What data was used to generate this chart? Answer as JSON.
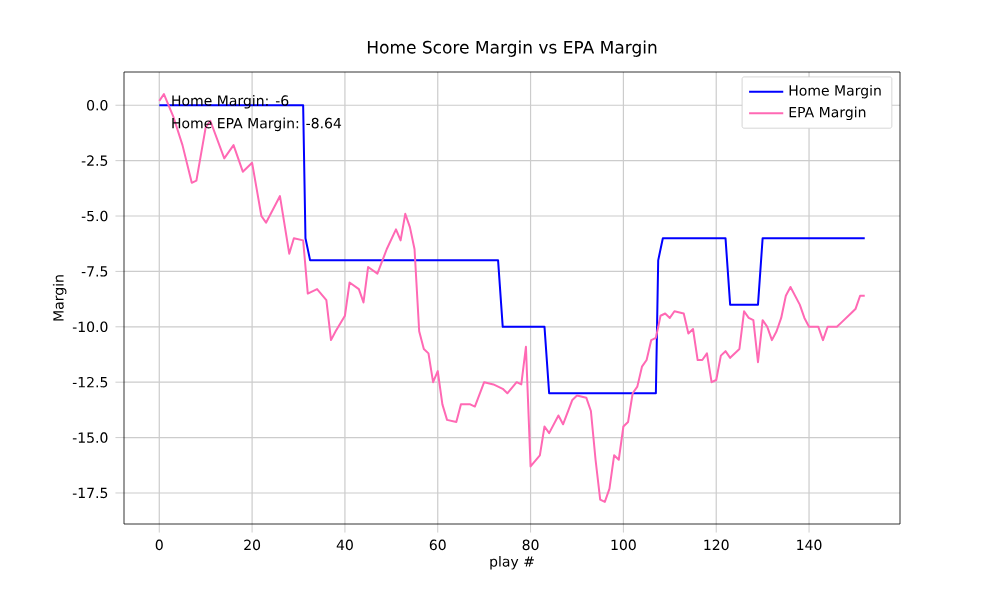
{
  "chart_data": {
    "type": "line",
    "title": "Home Score Margin vs EPA Margin",
    "xlabel": "play #",
    "ylabel": "Margin",
    "annotations": [
      "Home Margin: -6",
      "Home EPA Margin: -8.64"
    ],
    "series": [
      {
        "name": "Home Margin",
        "color": "#0000ff",
        "x": [
          0,
          31,
          31.5,
          32.5,
          73,
          74,
          83,
          84,
          107,
          107.5,
          108.5,
          122,
          123,
          129,
          130,
          152
        ],
        "values": [
          0,
          0,
          -6,
          -7,
          -7,
          -10,
          -10,
          -13,
          -13,
          -7,
          -6,
          -6,
          -9,
          -9,
          -6,
          -6
        ]
      },
      {
        "name": "EPA Margin",
        "color": "#ff69b4",
        "x": [
          0,
          1,
          3,
          5,
          7,
          8,
          10,
          11,
          14,
          16,
          18,
          20,
          21,
          22,
          23,
          25,
          26,
          28,
          29,
          31,
          32,
          34,
          36,
          37,
          38,
          40,
          41,
          43,
          44,
          45,
          47,
          49,
          51,
          52,
          53,
          54,
          55,
          56,
          57,
          58,
          59,
          60,
          61,
          62,
          64,
          65,
          67,
          68,
          70,
          72,
          74,
          75,
          77,
          78,
          79,
          80,
          82,
          83,
          84,
          86,
          87,
          89,
          90,
          92,
          93,
          94,
          95,
          96,
          97,
          98,
          99,
          100,
          101,
          102,
          103,
          104,
          105,
          106,
          107,
          108,
          109,
          110,
          111,
          113,
          114,
          115,
          116,
          117,
          118,
          119,
          120,
          121,
          122,
          123,
          125,
          126,
          127,
          128,
          129,
          130,
          131,
          132,
          133,
          134,
          135,
          136,
          137,
          138,
          139,
          140,
          142,
          143,
          144,
          146,
          147,
          149,
          150,
          151,
          152
        ],
        "values": [
          0.2,
          0.5,
          -0.5,
          -1.8,
          -3.5,
          -3.4,
          -1.0,
          -0.7,
          -2.4,
          -1.8,
          -3.0,
          -2.6,
          -3.8,
          -5.0,
          -5.3,
          -4.5,
          -4.1,
          -6.7,
          -6.0,
          -6.1,
          -8.5,
          -8.3,
          -8.8,
          -10.6,
          -10.2,
          -9.5,
          -8.0,
          -8.3,
          -8.9,
          -7.3,
          -7.6,
          -6.5,
          -5.6,
          -6.1,
          -4.9,
          -5.5,
          -6.5,
          -10.2,
          -11.0,
          -11.2,
          -12.5,
          -12.0,
          -13.5,
          -14.2,
          -14.3,
          -13.5,
          -13.5,
          -13.6,
          -12.5,
          -12.6,
          -12.8,
          -13.0,
          -12.5,
          -12.6,
          -10.9,
          -16.3,
          -15.8,
          -14.5,
          -14.8,
          -14.0,
          -14.4,
          -13.3,
          -13.1,
          -13.2,
          -13.8,
          -16.0,
          -17.8,
          -17.9,
          -17.3,
          -15.8,
          -16.0,
          -14.5,
          -14.3,
          -13.0,
          -12.7,
          -11.8,
          -11.5,
          -10.6,
          -10.5,
          -9.5,
          -9.4,
          -9.6,
          -9.3,
          -9.4,
          -10.3,
          -10.1,
          -11.5,
          -11.5,
          -11.2,
          -12.5,
          -12.4,
          -11.3,
          -11.1,
          -11.4,
          -11.0,
          -9.3,
          -9.6,
          -9.7,
          -11.6,
          -9.7,
          -10.0,
          -10.6,
          -10.2,
          -9.6,
          -8.6,
          -8.2,
          -8.6,
          -9.0,
          -9.6,
          -10.0,
          -10.0,
          -10.6,
          -10.0,
          -10.0,
          -9.8,
          -9.4,
          -9.2,
          -8.6,
          -8.6
        ]
      }
    ],
    "xlim": [
      -7.6,
      159.6
    ],
    "ylim": [
      -18.9,
      1.5
    ],
    "xticks": [
      0,
      20,
      40,
      60,
      80,
      100,
      120,
      140
    ],
    "yticks": [
      {
        "value": 0,
        "label": "0.0"
      },
      -2.5,
      {
        "value": -5,
        "label": "-5.0"
      },
      -7.5,
      {
        "value": -10,
        "label": "-10.0"
      },
      -12.5,
      {
        "value": -15,
        "label": "-15.0"
      },
      -17.5
    ],
    "grid": true,
    "legend": "top right",
    "marker": "none",
    "line_style": "solid"
  }
}
